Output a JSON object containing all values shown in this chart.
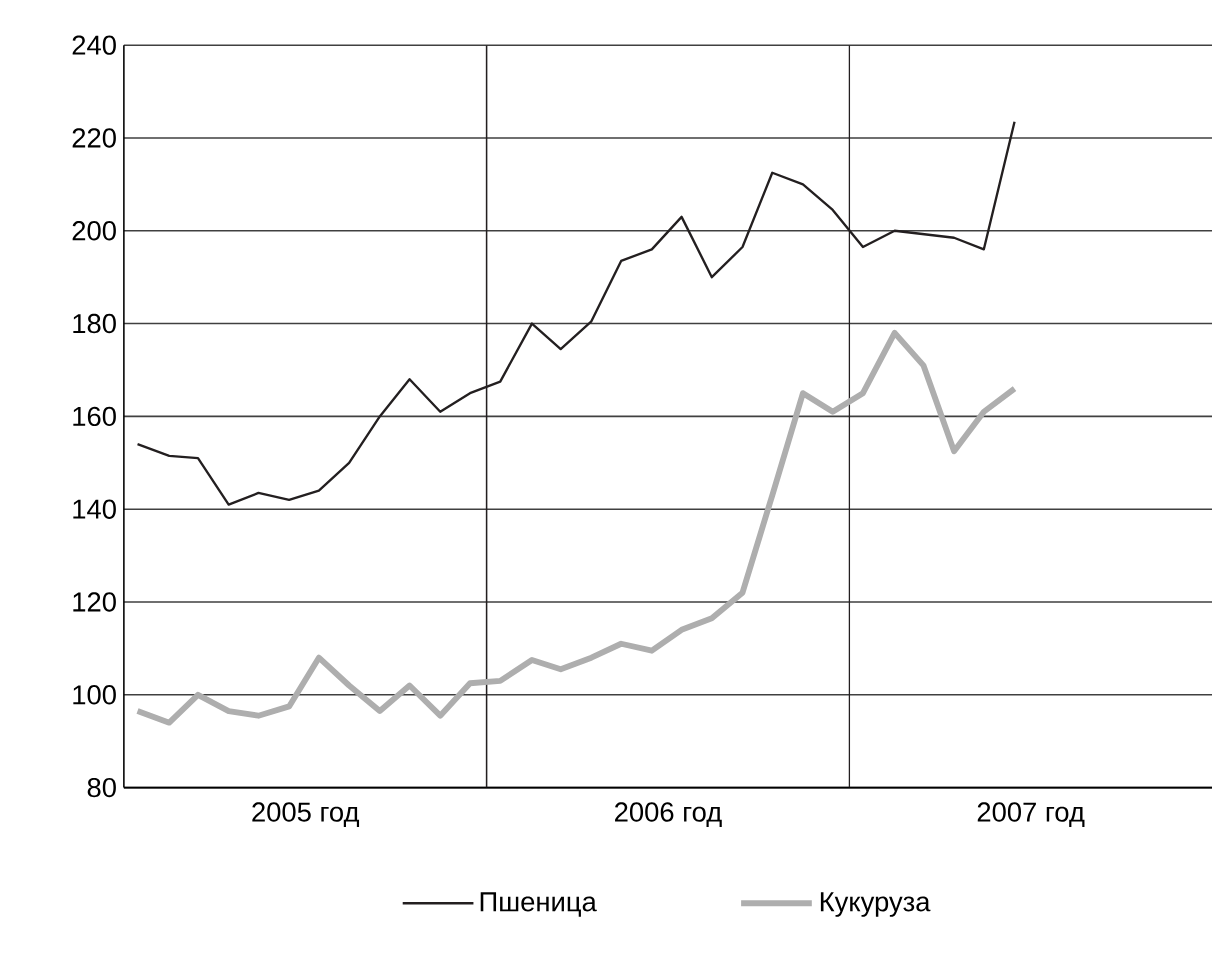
{
  "chart_data": {
    "type": "line",
    "xlim": [
      "2005-01-01",
      "2008-01-01"
    ],
    "ylim": [
      80,
      240
    ],
    "xticks": [
      {
        "value": "2005-07-01",
        "label": "2005 год"
      },
      {
        "value": "2006-07-01",
        "label": "2006 год"
      },
      {
        "value": "2007-07-01",
        "label": "2007 год"
      }
    ],
    "yticks": [
      80,
      100,
      120,
      140,
      160,
      180,
      200,
      220,
      240
    ],
    "grid": "y",
    "legend": "bottom",
    "marker": "none",
    "line_style": "solid",
    "ref_lines": [
      {
        "axis": "x",
        "value": "2006-01-01",
        "color": "#231f20"
      },
      {
        "axis": "x",
        "value": "2007-01-01",
        "color": "#231f20"
      }
    ],
    "series": [
      {
        "name": "Пшеница",
        "color": "#231f20",
        "x": [
          "2005-01-15",
          "2005-02-15",
          "2005-03-15",
          "2005-04-15",
          "2005-05-15",
          "2005-06-15",
          "2005-07-15",
          "2005-08-15",
          "2005-09-15",
          "2005-10-15",
          "2005-11-15",
          "2005-12-15",
          "2006-01-15",
          "2006-02-15",
          "2006-03-15",
          "2006-04-15",
          "2006-05-15",
          "2006-06-15",
          "2006-07-15",
          "2006-08-15",
          "2006-09-15",
          "2006-10-15",
          "2006-11-15",
          "2006-12-15",
          "2007-01-15",
          "2007-02-15",
          "2007-04-15",
          "2007-05-15",
          "2007-06-15"
        ],
        "values": [
          154,
          151.5,
          151,
          141,
          143.5,
          142,
          144,
          150,
          160,
          168,
          161,
          165,
          167.5,
          180,
          174.5,
          180.5,
          193.5,
          196,
          203,
          190,
          196.5,
          212.5,
          210,
          204.5,
          196.5,
          200,
          198.5,
          196,
          223.5
        ]
      },
      {
        "name": "Кукуруза",
        "color": "#aeaeae",
        "x": [
          "2005-01-15",
          "2005-02-15",
          "2005-03-15",
          "2005-04-15",
          "2005-05-15",
          "2005-06-15",
          "2005-07-15",
          "2005-08-15",
          "2005-09-15",
          "2005-10-15",
          "2005-11-15",
          "2005-12-15",
          "2006-01-15",
          "2006-02-15",
          "2006-03-15",
          "2006-04-15",
          "2006-05-15",
          "2006-06-15",
          "2006-07-15",
          "2006-08-15",
          "2006-09-15",
          "2006-10-15",
          "2006-11-15",
          "2006-12-15",
          "2007-01-15",
          "2007-02-15",
          "2007-03-15",
          "2007-04-15",
          "2007-05-15",
          "2007-06-15"
        ],
        "values": [
          96.5,
          94,
          100,
          96.5,
          95.5,
          97.5,
          108,
          102,
          96.5,
          102,
          95.5,
          102.5,
          103,
          107.5,
          105.5,
          108,
          111,
          109.5,
          114,
          116.5,
          122,
          143,
          165,
          161,
          165,
          178,
          171,
          152.5,
          161,
          166
        ]
      }
    ]
  }
}
